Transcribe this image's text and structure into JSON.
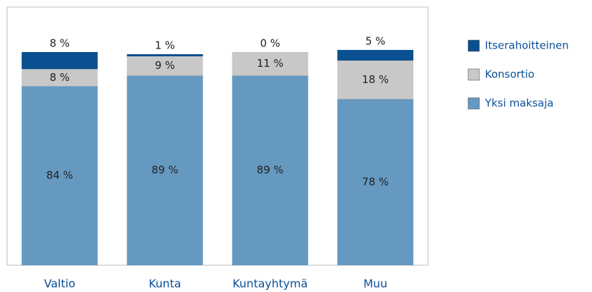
{
  "chart_data": {
    "type": "stacked_bar",
    "categories": [
      "Valtio",
      "Kunta",
      "Kuntayhtymä",
      "Muu"
    ],
    "series": [
      {
        "name": "Yksi maksaja",
        "color": "#6699c0",
        "values": [
          84,
          89,
          89,
          78
        ],
        "value_labels": [
          "84 %",
          "89 %",
          "89 %",
          "78 %"
        ]
      },
      {
        "name": "Konsortio",
        "color": "#c8c8c8",
        "values": [
          8,
          9,
          11,
          18
        ],
        "value_labels": [
          "8 %",
          "9 %",
          "11 %",
          "18 %"
        ]
      },
      {
        "name": "Itserahoitteinen",
        "color": "#0a4f8f",
        "values": [
          8,
          1,
          0,
          5
        ],
        "value_labels": [
          "8 %",
          "1 %",
          "0 %",
          "5 %"
        ]
      }
    ],
    "ylim": [
      0,
      100
    ],
    "legend": "right"
  }
}
